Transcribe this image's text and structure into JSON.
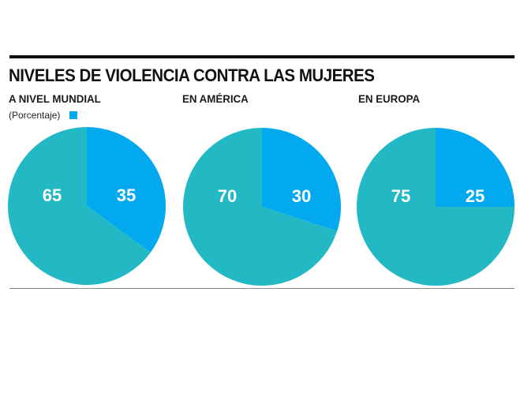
{
  "header": {
    "title": "NIVELES DE VIOLENCIA CONTRA LAS MUJERES",
    "unit_label": "(Porcentaje)"
  },
  "colors": {
    "highlight": "#03a9ef",
    "rest": "#22b8c4"
  },
  "chart_data": [
    {
      "type": "pie",
      "title": "A NIVEL MUNDIAL",
      "unit": "(Porcentaje)",
      "slices": [
        {
          "label": "35",
          "value": 35,
          "color": "#03a9ef"
        },
        {
          "label": "65",
          "value": 65,
          "color": "#22b8c4"
        }
      ]
    },
    {
      "type": "pie",
      "title": "EN AMÉRICA",
      "slices": [
        {
          "label": "30",
          "value": 30,
          "color": "#03a9ef"
        },
        {
          "label": "70",
          "value": 70,
          "color": "#22b8c4"
        }
      ]
    },
    {
      "type": "pie",
      "title": "EN EUROPA",
      "slices": [
        {
          "label": "25",
          "value": 25,
          "color": "#03a9ef"
        },
        {
          "label": "75",
          "value": 75,
          "color": "#22b8c4"
        }
      ]
    }
  ]
}
